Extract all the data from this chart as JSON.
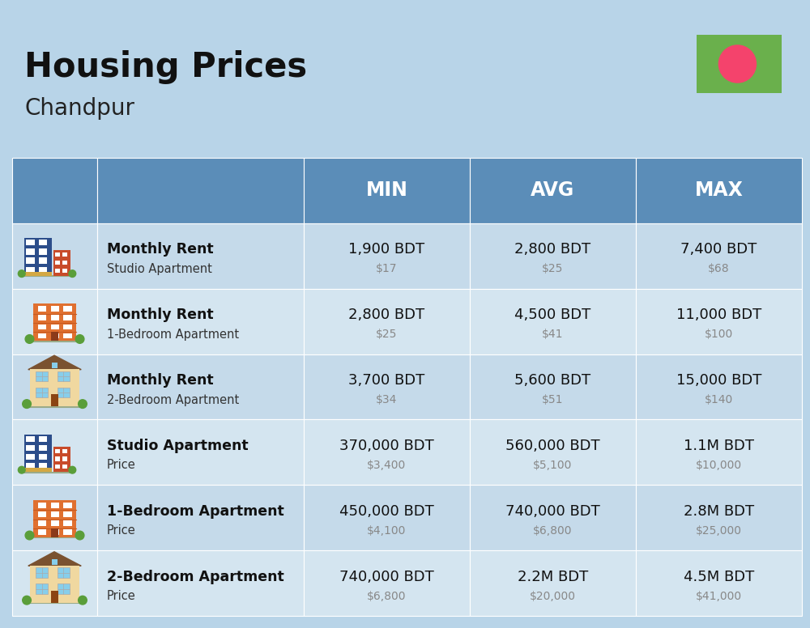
{
  "title": "Housing Prices",
  "subtitle": "Chandpur",
  "background_color": "#b8d4e8",
  "header_bg_color": "#5b8db8",
  "row_bg_even": "#c5daea",
  "row_bg_odd": "#d4e5f0",
  "col_headers": [
    "MIN",
    "AVG",
    "MAX"
  ],
  "flag_green": "#6ab04c",
  "flag_red": "#f4436c",
  "rows": [
    {
      "title_bold": "Monthly Rent",
      "title_sub": "Studio Apartment",
      "min_bdt": "1,900 BDT",
      "min_usd": "$17",
      "avg_bdt": "2,800 BDT",
      "avg_usd": "$25",
      "max_bdt": "7,400 BDT",
      "max_usd": "$68",
      "icon_type": "blue_building"
    },
    {
      "title_bold": "Monthly Rent",
      "title_sub": "1-Bedroom Apartment",
      "min_bdt": "2,800 BDT",
      "min_usd": "$25",
      "avg_bdt": "4,500 BDT",
      "avg_usd": "$41",
      "max_bdt": "11,000 BDT",
      "max_usd": "$100",
      "icon_type": "orange_building"
    },
    {
      "title_bold": "Monthly Rent",
      "title_sub": "2-Bedroom Apartment",
      "min_bdt": "3,700 BDT",
      "min_usd": "$34",
      "avg_bdt": "5,600 BDT",
      "avg_usd": "$51",
      "max_bdt": "15,000 BDT",
      "max_usd": "$140",
      "icon_type": "beige_building"
    },
    {
      "title_bold": "Studio Apartment",
      "title_sub": "Price",
      "min_bdt": "370,000 BDT",
      "min_usd": "$3,400",
      "avg_bdt": "560,000 BDT",
      "avg_usd": "$5,100",
      "max_bdt": "1.1M BDT",
      "max_usd": "$10,000",
      "icon_type": "blue_building"
    },
    {
      "title_bold": "1-Bedroom Apartment",
      "title_sub": "Price",
      "min_bdt": "450,000 BDT",
      "min_usd": "$4,100",
      "avg_bdt": "740,000 BDT",
      "avg_usd": "$6,800",
      "max_bdt": "2.8M BDT",
      "max_usd": "$25,000",
      "icon_type": "orange_building"
    },
    {
      "title_bold": "2-Bedroom Apartment",
      "title_sub": "Price",
      "min_bdt": "740,000 BDT",
      "min_usd": "$6,800",
      "avg_bdt": "2.2M BDT",
      "avg_usd": "$20,000",
      "max_bdt": "4.5M BDT",
      "max_usd": "$41,000",
      "icon_type": "beige_building"
    }
  ]
}
